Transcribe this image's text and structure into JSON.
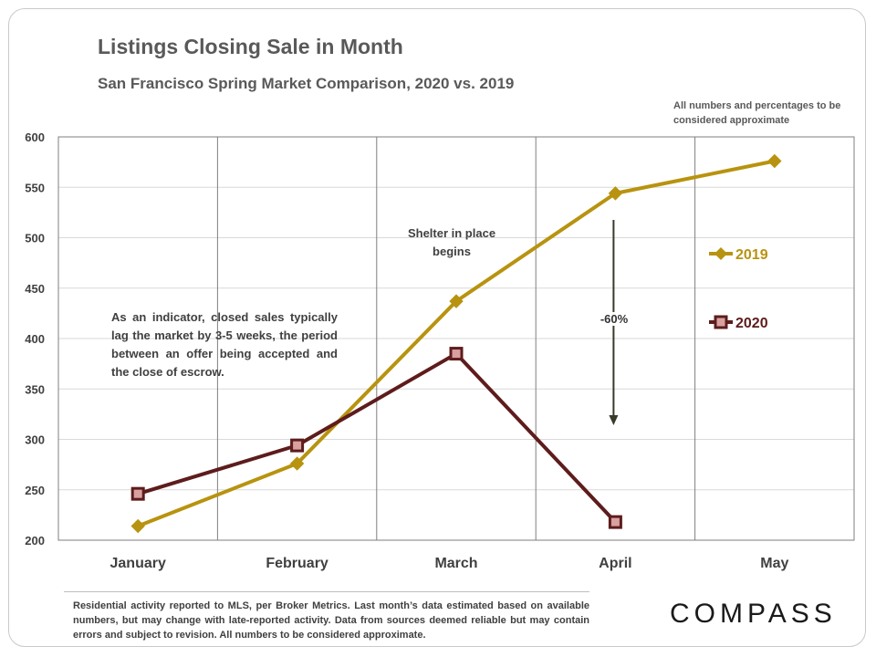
{
  "chart_data": {
    "type": "line",
    "title": "Listings Closing Sale in Month",
    "subtitle": "San Francisco Spring Market Comparison,  2020 vs. 2019",
    "categories": [
      "January",
      "February",
      "March",
      "April",
      "May"
    ],
    "ylim": [
      200,
      600
    ],
    "yticks": [
      200,
      250,
      300,
      350,
      400,
      450,
      500,
      550,
      600
    ],
    "grid": "vertical and horizontal",
    "legend_position": "right",
    "series": [
      {
        "name": "2019",
        "values": [
          214,
          276,
          437,
          544,
          576
        ],
        "color": "#b8930f",
        "marker": "diamond"
      },
      {
        "name": "2020",
        "values": [
          246,
          294,
          385,
          218,
          null
        ],
        "color": "#5e1c1c",
        "marker": "square",
        "marker_fill": "#d9a0a0"
      }
    ],
    "annotations": {
      "approx_note": "All numbers and percentages to be considered approximate",
      "shelter": "Shelter in place begins",
      "indicator": "As an indicator, closed sales typically lag the market by 3-5 weeks, the period between an offer being accepted and the close of escrow.",
      "change_label": "-60%"
    }
  },
  "footnote": "Residential activity reported to MLS, per Broker Metrics. Last month’s data estimated based on available numbers, but may change with late-reported activity. Data from sources deemed reliable but may contain errors and subject to revision. All numbers to be considered approximate.",
  "logo": "COMPASS"
}
